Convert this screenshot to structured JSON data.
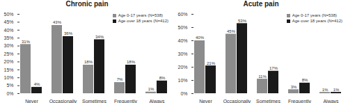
{
  "chart_data": [
    {
      "type": "bar",
      "title": "Chronic pain",
      "categories": [
        "Never",
        "Occasionally",
        "Sometimes",
        "Frequently",
        "Always"
      ],
      "series": [
        {
          "name": "Age 0-17 years (N=538)",
          "color": "#8c8c8c",
          "values": [
            31,
            43,
            18,
            7,
            1
          ],
          "value_labels": [
            "31%",
            "43%",
            "18%",
            "7%",
            "1%"
          ]
        },
        {
          "name": "Age over 18 years (N=412)",
          "color": "#1a1a1a",
          "values": [
            4,
            36,
            34,
            18,
            8
          ],
          "value_labels": [
            "4%",
            "36%",
            "34%",
            "18%",
            "8%"
          ]
        }
      ],
      "ylim": [
        0,
        50
      ],
      "yticks": [
        {
          "value": 0,
          "label": "0%"
        },
        {
          "value": 5,
          "label": "5%"
        },
        {
          "value": 10,
          "label": "10%"
        },
        {
          "value": 15,
          "label": "15%"
        },
        {
          "value": 20,
          "label": "20%"
        },
        {
          "value": 25,
          "label": "25%"
        },
        {
          "value": 30,
          "label": "30%"
        },
        {
          "value": 35,
          "label": "35%"
        },
        {
          "value": 40,
          "label": "40%"
        },
        {
          "value": 45,
          "label": "45%"
        },
        {
          "value": 50,
          "label": "50%"
        }
      ],
      "data_labels": true,
      "legend": "upper right"
    },
    {
      "type": "bar",
      "title": "Acute pain",
      "categories": [
        "Never",
        "Occasionally",
        "Sometimes",
        "Frequently",
        "Always"
      ],
      "series": [
        {
          "name": "Age 0-17 years (N=538)",
          "color": "#8c8c8c",
          "values": [
            40,
            45,
            11,
            3,
            1
          ],
          "value_labels": [
            "40%",
            "45%",
            "11%",
            "3%",
            "1%"
          ]
        },
        {
          "name": "Age over 18 years (N=412)",
          "color": "#1a1a1a",
          "values": [
            21,
            53,
            17,
            8,
            1
          ],
          "value_labels": [
            "21%",
            "53%",
            "17%",
            "8%",
            "1%"
          ]
        }
      ],
      "ylim": [
        0,
        60
      ],
      "yticks": [
        {
          "value": 0,
          "label": "0%"
        },
        {
          "value": 10,
          "label": "10%"
        },
        {
          "value": 20,
          "label": "20%"
        },
        {
          "value": 30,
          "label": "30%"
        },
        {
          "value": 40,
          "label": "40%"
        },
        {
          "value": 50,
          "label": "50%"
        },
        {
          "value": 60,
          "label": "60%"
        }
      ],
      "data_labels": true,
      "legend": "upper right"
    }
  ]
}
